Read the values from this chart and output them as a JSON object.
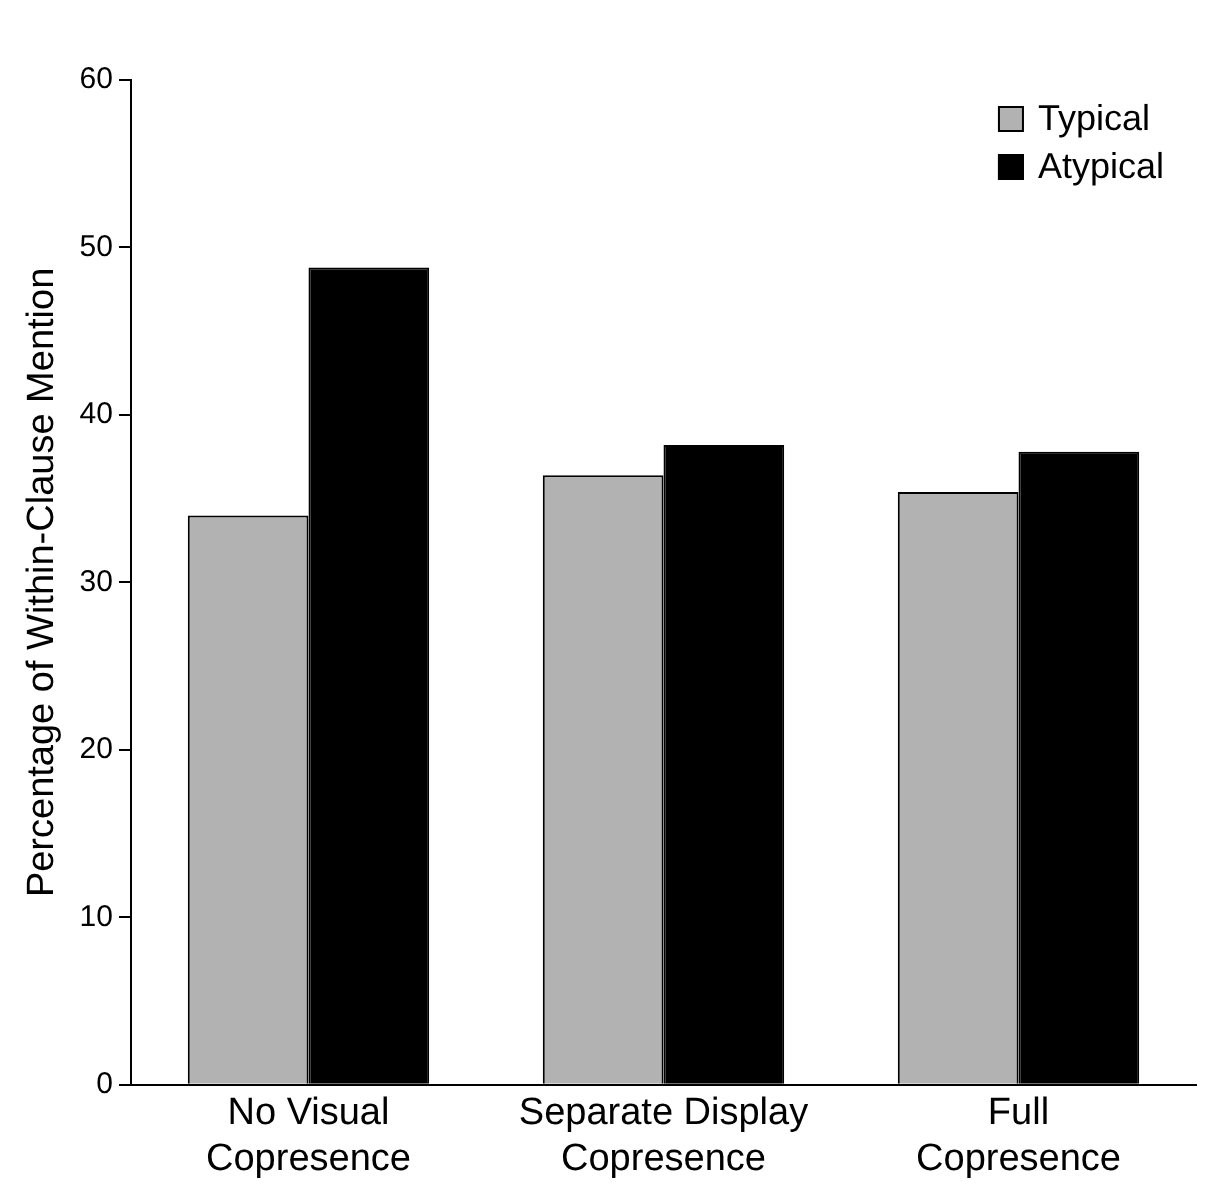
{
  "chart_data": {
    "type": "bar",
    "ylabel": "Percentage of Within-Clause Mention",
    "categories": [
      "No Visual\nCopresence",
      "Separate Display\nCopresence",
      "Full\nCopresence"
    ],
    "series": [
      {
        "name": "Typical",
        "color": "#b2b2b2",
        "values": [
          34.0,
          36.4,
          35.4
        ]
      },
      {
        "name": "Atypical",
        "color": "#000000",
        "values": [
          48.8,
          38.2,
          37.8
        ]
      }
    ],
    "ylim": [
      0,
      60
    ],
    "yticks": [
      0,
      10,
      20,
      30,
      40,
      50,
      60
    ],
    "grid": false,
    "legend": "top right"
  }
}
